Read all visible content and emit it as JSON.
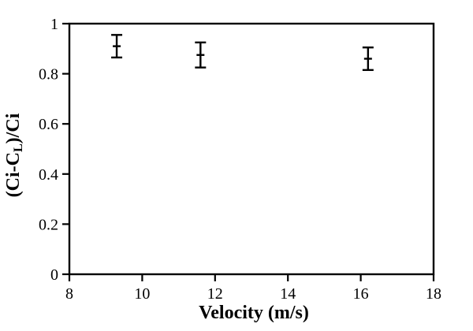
{
  "figure": {
    "background": "#ffffff",
    "line_color": "#000000"
  },
  "chart_data": {
    "type": "scatter",
    "title": "",
    "xlabel": "Velocity (m/s)",
    "ylabel": "(Ci-CL)/Ci",
    "ylabel_parts": {
      "pre": "(Ci-C",
      "sub": "L",
      "post": ")/Ci"
    },
    "x": [
      9.3,
      11.6,
      16.2
    ],
    "y": [
      0.91,
      0.875,
      0.86
    ],
    "yerr": [
      0.045,
      0.05,
      0.045
    ],
    "marker": "horizontal-dash",
    "error_bars": "vertical-with-caps",
    "series_color": "#000000",
    "xlim": [
      8,
      18
    ],
    "ylim": [
      0,
      1
    ],
    "xticks": {
      "values": [
        8,
        10,
        12,
        14,
        16,
        18
      ],
      "labels": [
        "8",
        "10",
        "12",
        "14",
        "16",
        "18"
      ]
    },
    "yticks": {
      "values": [
        0,
        0.2,
        0.4,
        0.6,
        0.8,
        1
      ],
      "labels": [
        "0",
        "0.2",
        "0.4",
        "0.6",
        "0.8",
        "1"
      ]
    },
    "grid": false,
    "legend": false,
    "frame": "box"
  }
}
